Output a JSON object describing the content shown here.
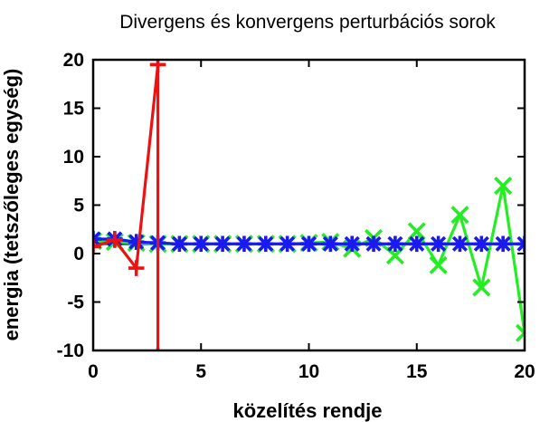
{
  "chart_data": {
    "type": "line",
    "title": "Divergens és konvergens perturbációs sorok",
    "xlabel": "közelítés rendje",
    "ylabel": "energia (tetszőleges egység)",
    "xlim": [
      0,
      20
    ],
    "ylim": [
      -10,
      20
    ],
    "xticks": [
      0,
      5,
      10,
      15,
      20
    ],
    "yticks": [
      20,
      15,
      10,
      5,
      0,
      -5,
      -10
    ],
    "grid": false,
    "reference_line": {
      "y": 1,
      "color": "#0a5a8a"
    },
    "series": [
      {
        "color": "#ee1111",
        "marker": "plus",
        "x": [
          0,
          1,
          2,
          3,
          3
        ],
        "y": [
          0.7,
          1.4,
          -1.5,
          19.5,
          -10.5
        ]
      },
      {
        "color": "#22ee22",
        "marker": "cross",
        "x": [
          0,
          1,
          2,
          3,
          4,
          5,
          6,
          7,
          8,
          9,
          10,
          11,
          12,
          13,
          14,
          15,
          16,
          17,
          18,
          19,
          20
        ],
        "y": [
          1.3,
          1.2,
          1.1,
          1.0,
          1.0,
          1.0,
          1.0,
          1.0,
          1.0,
          1.0,
          1.1,
          1.2,
          0.5,
          1.6,
          -0.2,
          2.3,
          -1.2,
          4.0,
          -3.5,
          7.0,
          -8.2
        ]
      },
      {
        "color": "#1a1aee",
        "marker": "star",
        "x": [
          0,
          1,
          2,
          3,
          4,
          5,
          6,
          7,
          8,
          9,
          10,
          11,
          12,
          13,
          14,
          15,
          16,
          17,
          18,
          19,
          20
        ],
        "y": [
          1.5,
          1.5,
          1.2,
          1.1,
          1.0,
          1.0,
          1.0,
          1.0,
          1.0,
          1.0,
          1.0,
          1.0,
          1.0,
          1.0,
          1.0,
          1.0,
          1.0,
          1.0,
          1.0,
          1.0,
          1.0
        ]
      }
    ]
  }
}
